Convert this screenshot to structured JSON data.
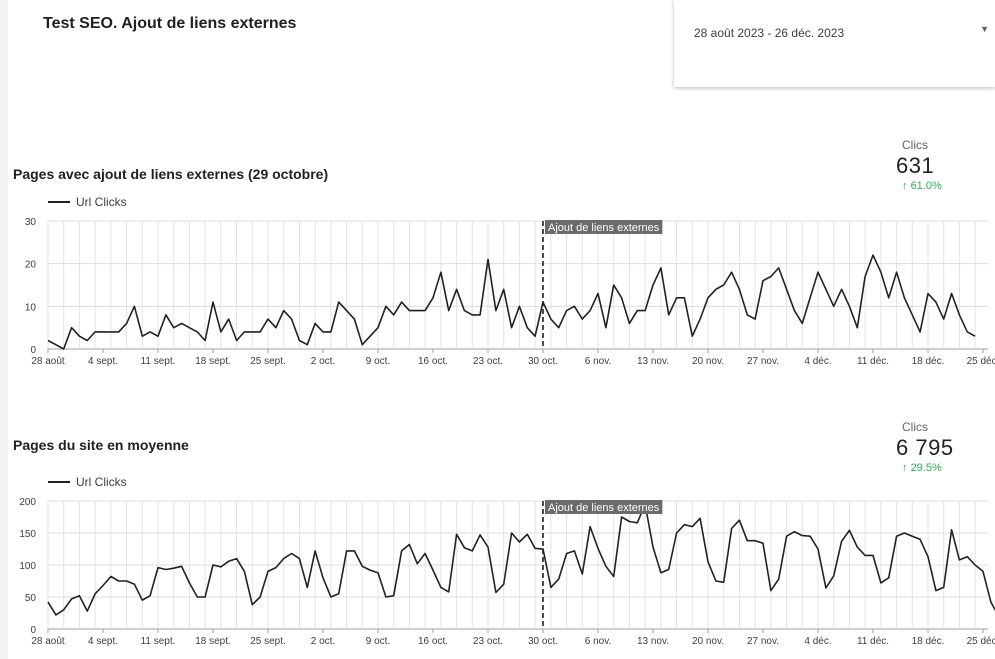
{
  "report": {
    "title": "Test SEO. Ajout de liens externes"
  },
  "date_range": {
    "value": "28 août 2023 - 26 déc. 2023",
    "arrow_icon": "dropdown-arrow-icon"
  },
  "charts_meta": [
    {
      "title": "Pages avec ajout de liens externes (29 octobre)",
      "legend": "Url Clicks",
      "kpi": {
        "label": "Clics",
        "value": "631",
        "delta": "61.0%",
        "delta_color": "#34a853"
      }
    },
    {
      "title": "Pages du site en moyenne",
      "legend": "Url Clicks",
      "kpi": {
        "label": "Clics",
        "value": "6 795",
        "delta": "29.5%",
        "delta_color": "#34a853"
      }
    }
  ],
  "chart_data": [
    {
      "type": "line",
      "title": "Pages avec ajout de liens externes (29 octobre)",
      "ylim": [
        0,
        30
      ],
      "yticks": [
        0,
        10,
        20,
        30
      ],
      "xtick_labels": [
        "28 août",
        "4 sept.",
        "11 sept.",
        "18 sept.",
        "25 sept.",
        "2 oct.",
        "9 oct.",
        "16 oct.",
        "23 oct.",
        "30 oct.",
        "6 nov.",
        "13 nov.",
        "20 nov.",
        "27 nov.",
        "4 déc.",
        "11 déc.",
        "18 déc.",
        "25 déc."
      ],
      "annotation": {
        "label": "Ajout de liens externes",
        "x_day": 63
      },
      "grid": true,
      "series": [
        {
          "name": "Url Clicks",
          "values": [
            2,
            1,
            0,
            5,
            3,
            2,
            4,
            4,
            4,
            4,
            6,
            10,
            3,
            4,
            3,
            8,
            5,
            6,
            5,
            4,
            2,
            11,
            4,
            7,
            2,
            4,
            4,
            4,
            7,
            5,
            9,
            7,
            2,
            1,
            6,
            4,
            4,
            11,
            9,
            7,
            1,
            3,
            5,
            10,
            8,
            11,
            9,
            9,
            9,
            12,
            18,
            9,
            14,
            9,
            8,
            8,
            21,
            9,
            14,
            5,
            10,
            5,
            3,
            11,
            7,
            5,
            9,
            10,
            7,
            9,
            13,
            5,
            15,
            12,
            6,
            9,
            9,
            15,
            19,
            8,
            12,
            12,
            3,
            7,
            12,
            14,
            15,
            18,
            14,
            8,
            7,
            16,
            17,
            19,
            14,
            9,
            6,
            12,
            18,
            14,
            10,
            14,
            10,
            5,
            17,
            22,
            18,
            12,
            18,
            12,
            8,
            4,
            13,
            11,
            7,
            13,
            8,
            4,
            3
          ]
        }
      ]
    },
    {
      "type": "line",
      "title": "Pages du site en moyenne",
      "ylim": [
        0,
        200
      ],
      "yticks": [
        0,
        50,
        100,
        150,
        200
      ],
      "xtick_labels": [
        "28 août",
        "4 sept.",
        "11 sept.",
        "18 sept.",
        "25 sept.",
        "2 oct.",
        "9 oct.",
        "16 oct.",
        "23 oct.",
        "30 oct.",
        "6 nov.",
        "13 nov.",
        "20 nov.",
        "27 nov.",
        "4 déc.",
        "11 déc.",
        "18 déc.",
        "25 déc."
      ],
      "annotation": {
        "label": "Ajout de liens externes",
        "x_day": 63
      },
      "grid": true,
      "series": [
        {
          "name": "Url Clicks",
          "values": [
            42,
            22,
            30,
            47,
            52,
            28,
            55,
            68,
            82,
            75,
            75,
            70,
            45,
            52,
            96,
            93,
            95,
            98,
            72,
            50,
            50,
            100,
            97,
            106,
            110,
            90,
            38,
            50,
            90,
            96,
            110,
            118,
            110,
            65,
            122,
            80,
            50,
            55,
            122,
            122,
            98,
            92,
            88,
            50,
            52,
            122,
            132,
            102,
            118,
            92,
            65,
            58,
            148,
            127,
            122,
            147,
            128,
            57,
            70,
            150,
            136,
            148,
            126,
            125,
            65,
            78,
            118,
            122,
            86,
            160,
            126,
            98,
            82,
            175,
            168,
            166,
            195,
            128,
            88,
            93,
            150,
            163,
            160,
            173,
            105,
            75,
            73,
            157,
            170,
            138,
            138,
            134,
            60,
            78,
            145,
            152,
            146,
            145,
            125,
            64,
            83,
            137,
            154,
            128,
            115,
            115,
            72,
            80,
            145,
            150,
            145,
            140,
            113,
            60,
            65,
            155,
            108,
            113,
            100,
            90,
            42,
            20
          ]
        }
      ]
    }
  ]
}
